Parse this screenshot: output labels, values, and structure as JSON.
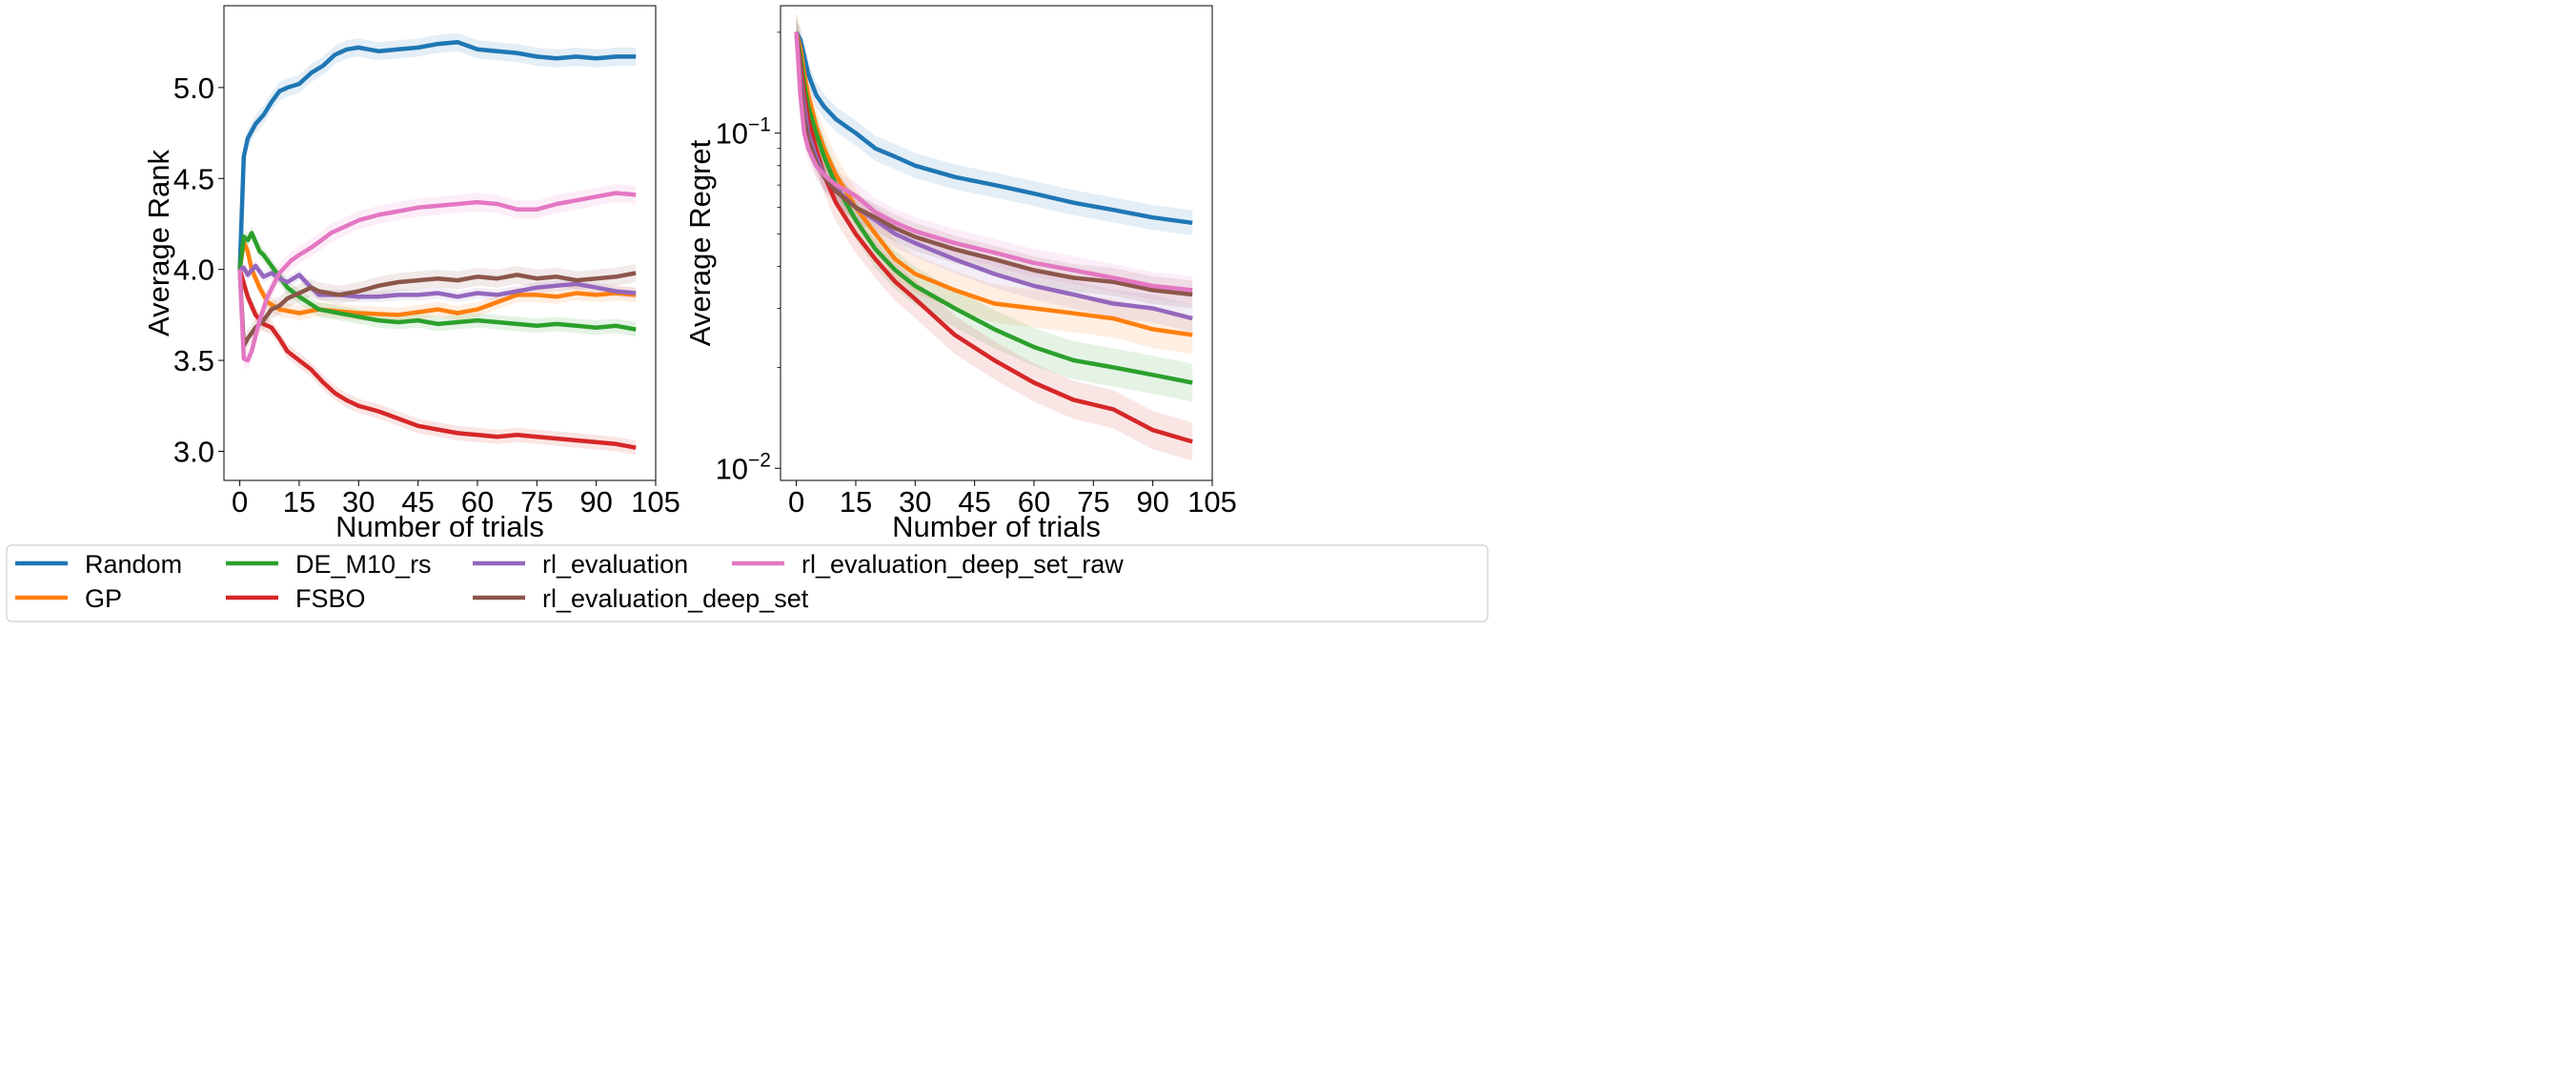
{
  "colors": {
    "Random": "#1f77b4",
    "GP": "#ff7f0e",
    "DE_M10_rs": "#2ca02c",
    "FSBO": "#d62728",
    "rl_evaluation": "#9467bd",
    "rl_evaluation_deep_set": "#8c564b",
    "rl_evaluation_deep_set_raw": "#e377c2"
  },
  "legend": {
    "placement": "bottom",
    "entries": [
      "Random",
      "GP",
      "DE_M10_rs",
      "FSBO",
      "rl_evaluation",
      "rl_evaluation_deep_set",
      "rl_evaluation_deep_set_raw"
    ]
  },
  "chart_data": [
    {
      "type": "line",
      "title": "",
      "xlabel": "Number of trials",
      "ylabel": "Average Rank",
      "xlim": [
        -4,
        105
      ],
      "ylim": [
        2.84,
        5.45
      ],
      "xticks": [
        0,
        15,
        30,
        45,
        60,
        75,
        90,
        105
      ],
      "xtick_labels": [
        "0",
        "15",
        "30",
        "45",
        "60",
        "75",
        "90",
        "105"
      ],
      "yticks": [
        3.0,
        3.5,
        4.0,
        4.5,
        5.0
      ],
      "ytick_labels": [
        "3.0",
        "3.5",
        "4.0",
        "4.5",
        "5.0"
      ],
      "yscale": "linear",
      "grid": false,
      "series": [
        {
          "name": "Random",
          "band": 0.05,
          "x": [
            0,
            1,
            2,
            4,
            6,
            8,
            10,
            12,
            15,
            18,
            21,
            24,
            27,
            30,
            35,
            40,
            45,
            50,
            55,
            60,
            65,
            70,
            75,
            80,
            85,
            90,
            95,
            100
          ],
          "values": [
            4.0,
            4.62,
            4.72,
            4.8,
            4.85,
            4.92,
            4.98,
            5.0,
            5.02,
            5.08,
            5.12,
            5.18,
            5.21,
            5.22,
            5.2,
            5.21,
            5.22,
            5.24,
            5.25,
            5.21,
            5.2,
            5.19,
            5.17,
            5.16,
            5.17,
            5.16,
            5.17,
            5.17
          ]
        },
        {
          "name": "GP",
          "band": 0.04,
          "x": [
            0,
            1,
            2,
            3,
            5,
            7,
            10,
            15,
            20,
            25,
            30,
            40,
            50,
            55,
            60,
            65,
            70,
            75,
            80,
            85,
            90,
            95,
            100
          ],
          "values": [
            4.0,
            4.15,
            4.1,
            4.0,
            3.9,
            3.82,
            3.78,
            3.76,
            3.78,
            3.77,
            3.76,
            3.75,
            3.78,
            3.76,
            3.78,
            3.82,
            3.86,
            3.86,
            3.85,
            3.87,
            3.86,
            3.87,
            3.86
          ]
        },
        {
          "name": "DE_M10_rs",
          "band": 0.04,
          "x": [
            0,
            1,
            2,
            3,
            4,
            5,
            6,
            8,
            10,
            12,
            15,
            20,
            25,
            30,
            35,
            40,
            45,
            50,
            55,
            60,
            65,
            70,
            75,
            80,
            85,
            90,
            95,
            100
          ],
          "values": [
            4.0,
            4.18,
            4.16,
            4.2,
            4.15,
            4.1,
            4.08,
            4.02,
            3.96,
            3.9,
            3.85,
            3.78,
            3.76,
            3.74,
            3.72,
            3.71,
            3.72,
            3.7,
            3.71,
            3.72,
            3.71,
            3.7,
            3.69,
            3.7,
            3.69,
            3.68,
            3.69,
            3.67
          ]
        },
        {
          "name": "FSBO",
          "band": 0.04,
          "x": [
            0,
            2,
            4,
            6,
            8,
            10,
            12,
            15,
            18,
            21,
            24,
            27,
            30,
            35,
            40,
            45,
            50,
            55,
            60,
            65,
            70,
            75,
            80,
            85,
            90,
            95,
            100
          ],
          "values": [
            4.0,
            3.85,
            3.75,
            3.7,
            3.68,
            3.62,
            3.55,
            3.5,
            3.45,
            3.38,
            3.32,
            3.28,
            3.25,
            3.22,
            3.18,
            3.14,
            3.12,
            3.1,
            3.09,
            3.08,
            3.09,
            3.08,
            3.07,
            3.06,
            3.05,
            3.04,
            3.02
          ]
        },
        {
          "name": "rl_evaluation",
          "band": 0.03,
          "x": [
            0,
            1,
            2,
            4,
            6,
            8,
            10,
            12,
            15,
            18,
            20,
            25,
            30,
            35,
            40,
            45,
            50,
            55,
            60,
            65,
            70,
            75,
            80,
            85,
            90,
            95,
            100
          ],
          "values": [
            4.0,
            4.01,
            3.97,
            4.02,
            3.96,
            3.98,
            3.95,
            3.93,
            3.97,
            3.9,
            3.86,
            3.86,
            3.85,
            3.85,
            3.86,
            3.86,
            3.87,
            3.85,
            3.87,
            3.86,
            3.88,
            3.9,
            3.91,
            3.92,
            3.9,
            3.88,
            3.87
          ]
        },
        {
          "name": "rl_evaluation_deep_set",
          "band": 0.05,
          "x": [
            0,
            1,
            2,
            4,
            6,
            8,
            10,
            12,
            15,
            18,
            20,
            25,
            30,
            35,
            40,
            45,
            50,
            55,
            60,
            65,
            70,
            75,
            80,
            85,
            90,
            95,
            100
          ],
          "values": [
            4.0,
            3.58,
            3.62,
            3.68,
            3.72,
            3.78,
            3.8,
            3.84,
            3.87,
            3.9,
            3.88,
            3.86,
            3.88,
            3.91,
            3.93,
            3.94,
            3.95,
            3.94,
            3.96,
            3.95,
            3.97,
            3.95,
            3.96,
            3.94,
            3.95,
            3.96,
            3.98
          ]
        },
        {
          "name": "rl_evaluation_deep_set_raw",
          "band": 0.05,
          "x": [
            0,
            1,
            2,
            3,
            5,
            7,
            10,
            13,
            15,
            18,
            20,
            23,
            25,
            28,
            30,
            35,
            40,
            45,
            50,
            55,
            60,
            65,
            70,
            75,
            80,
            85,
            90,
            95,
            100
          ],
          "values": [
            4.0,
            3.51,
            3.5,
            3.55,
            3.72,
            3.85,
            3.98,
            4.05,
            4.08,
            4.12,
            4.15,
            4.2,
            4.22,
            4.25,
            4.27,
            4.3,
            4.32,
            4.34,
            4.35,
            4.36,
            4.37,
            4.36,
            4.33,
            4.33,
            4.36,
            4.38,
            4.4,
            4.42,
            4.41
          ]
        }
      ]
    },
    {
      "type": "line",
      "title": "",
      "xlabel": "Number of trials",
      "ylabel": "Average Regret",
      "xlim": [
        -4,
        105
      ],
      "ylim": [
        0.0092,
        0.24
      ],
      "xticks": [
        0,
        15,
        30,
        45,
        60,
        75,
        90,
        105
      ],
      "xtick_labels": [
        "0",
        "15",
        "30",
        "45",
        "60",
        "75",
        "90",
        "105"
      ],
      "yticks": [
        0.01,
        0.1
      ],
      "ytick_labels": [
        "10−2",
        "10−1"
      ],
      "yscale": "log",
      "grid": false,
      "series": [
        {
          "name": "Random",
          "band": 0.09,
          "x": [
            0,
            1,
            2,
            3,
            5,
            7,
            10,
            15,
            20,
            25,
            30,
            40,
            50,
            60,
            70,
            80,
            90,
            100
          ],
          "values": [
            0.2,
            0.19,
            0.17,
            0.15,
            0.13,
            0.12,
            0.11,
            0.1,
            0.09,
            0.085,
            0.08,
            0.074,
            0.07,
            0.066,
            0.062,
            0.059,
            0.056,
            0.054
          ]
        },
        {
          "name": "GP",
          "band": 0.14,
          "x": [
            0,
            1,
            2,
            3,
            5,
            7,
            10,
            15,
            20,
            25,
            30,
            40,
            50,
            60,
            70,
            80,
            90,
            100
          ],
          "values": [
            0.2,
            0.18,
            0.15,
            0.13,
            0.105,
            0.09,
            0.075,
            0.06,
            0.05,
            0.042,
            0.038,
            0.034,
            0.031,
            0.03,
            0.029,
            0.028,
            0.026,
            0.025
          ]
        },
        {
          "name": "DE_M10_rs",
          "band": 0.14,
          "x": [
            0,
            1,
            2,
            3,
            5,
            7,
            10,
            15,
            20,
            25,
            30,
            40,
            50,
            60,
            70,
            80,
            90,
            100
          ],
          "values": [
            0.2,
            0.17,
            0.14,
            0.12,
            0.1,
            0.085,
            0.07,
            0.055,
            0.045,
            0.039,
            0.035,
            0.03,
            0.026,
            0.023,
            0.021,
            0.02,
            0.019,
            0.018
          ]
        },
        {
          "name": "FSBO",
          "band": 0.14,
          "x": [
            0,
            1,
            2,
            3,
            5,
            7,
            10,
            15,
            20,
            25,
            30,
            40,
            50,
            60,
            70,
            80,
            90,
            100
          ],
          "values": [
            0.2,
            0.16,
            0.13,
            0.11,
            0.09,
            0.075,
            0.062,
            0.05,
            0.042,
            0.036,
            0.032,
            0.025,
            0.021,
            0.018,
            0.016,
            0.015,
            0.013,
            0.012
          ]
        },
        {
          "name": "rl_evaluation",
          "band": 0.1,
          "x": [
            0,
            1,
            2,
            3,
            5,
            7,
            10,
            15,
            20,
            25,
            30,
            40,
            50,
            60,
            70,
            80,
            90,
            100
          ],
          "values": [
            0.2,
            0.15,
            0.12,
            0.1,
            0.085,
            0.075,
            0.068,
            0.06,
            0.055,
            0.05,
            0.047,
            0.042,
            0.038,
            0.035,
            0.033,
            0.031,
            0.03,
            0.028
          ]
        },
        {
          "name": "rl_evaluation_deep_set",
          "band": 0.1,
          "x": [
            0,
            1,
            2,
            3,
            5,
            7,
            10,
            15,
            20,
            25,
            30,
            40,
            50,
            60,
            70,
            80,
            90,
            100
          ],
          "values": [
            0.2,
            0.14,
            0.11,
            0.095,
            0.082,
            0.074,
            0.067,
            0.06,
            0.056,
            0.052,
            0.049,
            0.045,
            0.042,
            0.039,
            0.037,
            0.036,
            0.034,
            0.033
          ]
        },
        {
          "name": "rl_evaluation_deep_set_raw",
          "band": 0.1,
          "x": [
            0,
            1,
            2,
            3,
            5,
            7,
            10,
            15,
            20,
            25,
            30,
            40,
            50,
            60,
            70,
            80,
            90,
            100
          ],
          "values": [
            0.2,
            0.13,
            0.1,
            0.09,
            0.08,
            0.075,
            0.07,
            0.065,
            0.058,
            0.054,
            0.051,
            0.047,
            0.044,
            0.041,
            0.039,
            0.037,
            0.035,
            0.034
          ]
        }
      ]
    }
  ]
}
